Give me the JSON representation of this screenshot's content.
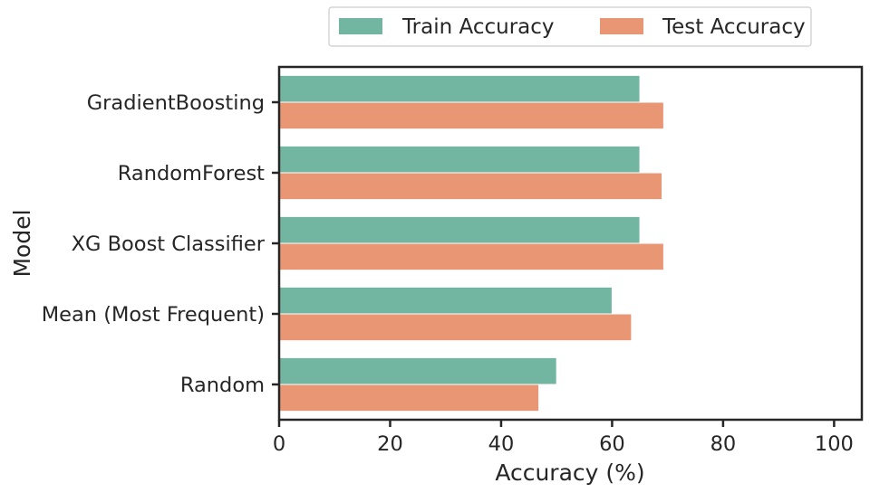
{
  "chart_data": {
    "type": "bar",
    "orientation": "horizontal",
    "categories": [
      "GradientBoosting",
      "RandomForest",
      "XG Boost Classifier",
      "Mean (Most Frequent)",
      "Random"
    ],
    "series": [
      {
        "name": "Train Accuracy",
        "color": "#72b6a1",
        "values": [
          65,
          65,
          65,
          60,
          50
        ]
      },
      {
        "name": "Test Accuracy",
        "color": "#e99675",
        "values": [
          69.3,
          69,
          69.3,
          63.5,
          46.8
        ]
      }
    ],
    "xlabel": "Accuracy (%)",
    "ylabel": "Model",
    "xlim": [
      0,
      105
    ],
    "xticks": [
      0,
      20,
      40,
      60,
      80,
      100
    ],
    "grid": false,
    "legend_position": "top-right, outside plot"
  }
}
